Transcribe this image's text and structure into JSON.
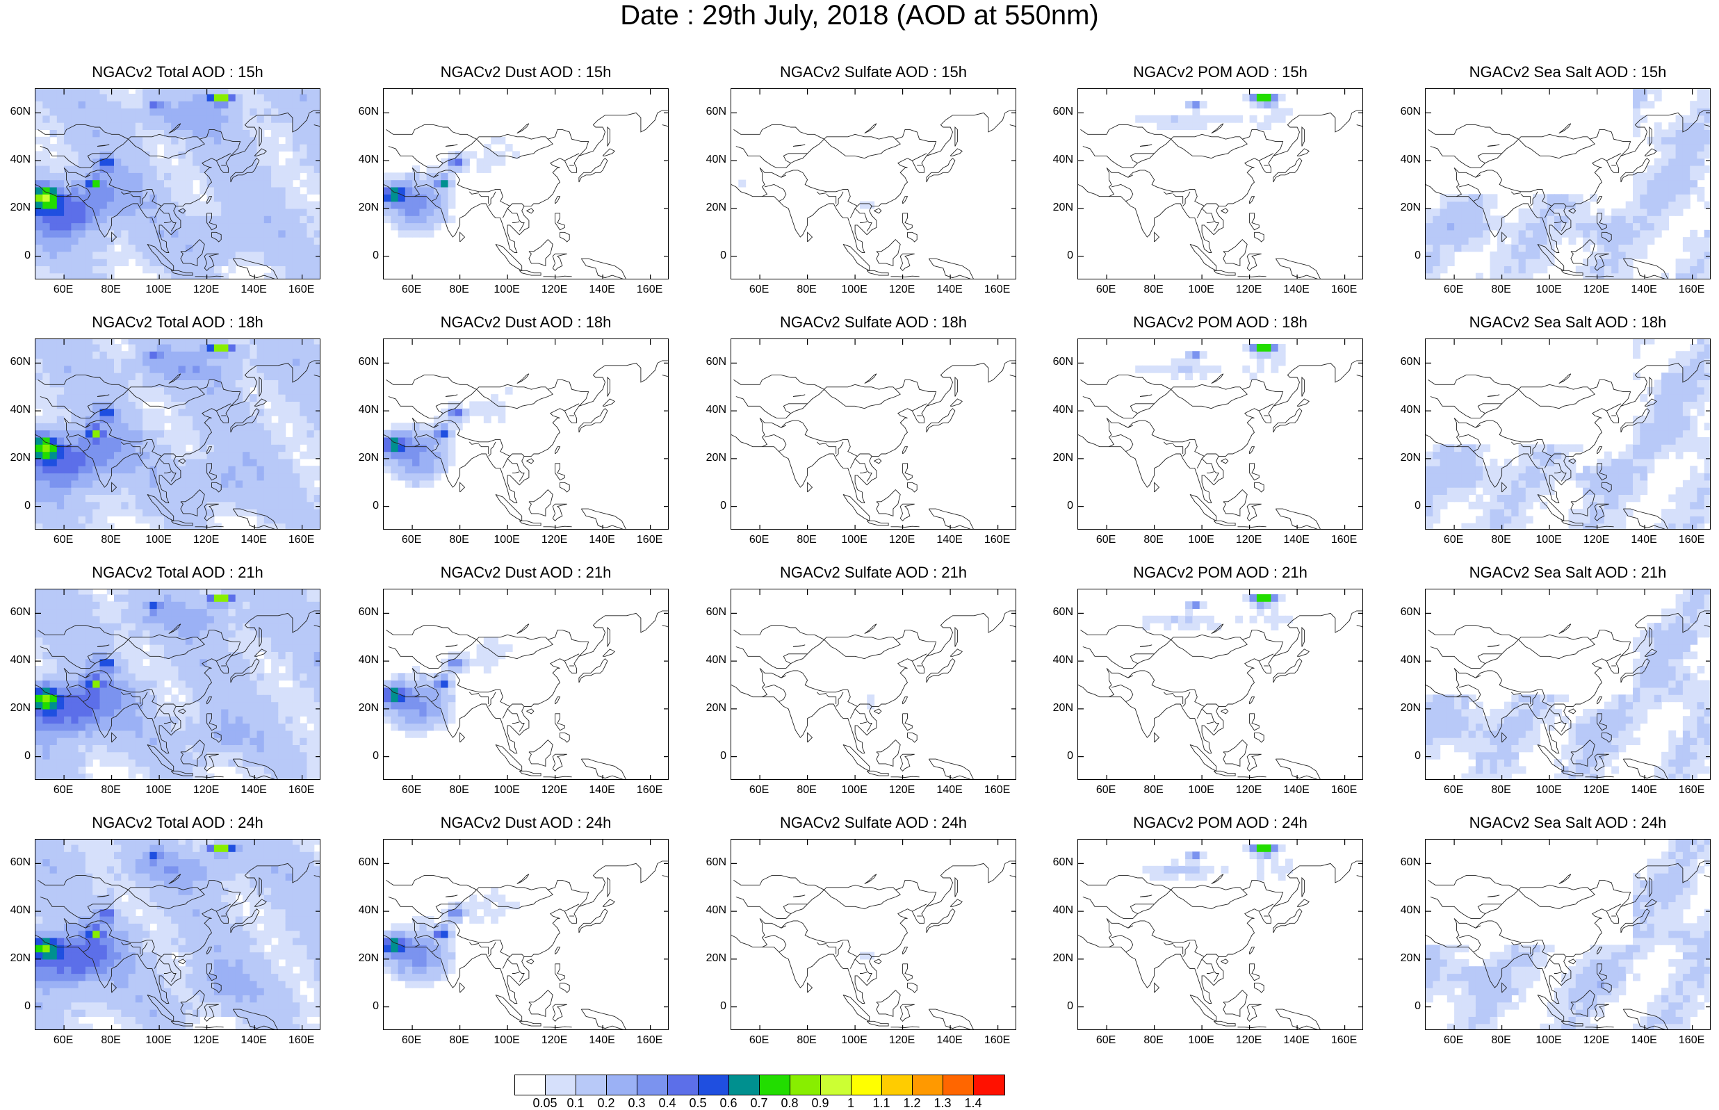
{
  "title": "Date : 29th July, 2018 (AOD at 550nm)",
  "panel_titles": [
    [
      "NGACv2 Total AOD : 15h",
      "NGACv2 Dust AOD : 15h",
      "NGACv2 Sulfate AOD : 15h",
      "NGACv2 POM AOD : 15h",
      "NGACv2 Sea Salt AOD : 15h"
    ],
    [
      "NGACv2 Total AOD : 18h",
      "NGACv2 Dust AOD : 18h",
      "NGACv2 Sulfate AOD : 18h",
      "NGACv2 POM AOD : 18h",
      "NGACv2 Sea Salt AOD : 18h"
    ],
    [
      "NGACv2 Total AOD : 21h",
      "NGACv2 Dust AOD : 21h",
      "NGACv2 Sulfate AOD : 21h",
      "NGACv2 POM AOD : 21h",
      "NGACv2 Sea Salt AOD : 21h"
    ],
    [
      "NGACv2 Total AOD : 24h",
      "NGACv2 Dust AOD : 24h",
      "NGACv2 Sulfate AOD : 24h",
      "NGACv2 POM AOD : 24h",
      "NGACv2 Sea Salt  AOD : 24h"
    ]
  ],
  "map_extent": {
    "lon": [
      48,
      168
    ],
    "lat": [
      -10,
      70
    ]
  },
  "lat_ticks": [
    {
      "value": 60,
      "label": "60N"
    },
    {
      "value": 40,
      "label": "40N"
    },
    {
      "value": 20,
      "label": "20N"
    },
    {
      "value": 0,
      "label": "0"
    }
  ],
  "lon_ticks": [
    {
      "value": 60,
      "label": "60E"
    },
    {
      "value": 80,
      "label": "80E"
    },
    {
      "value": 100,
      "label": "100E"
    },
    {
      "value": 120,
      "label": "120E"
    },
    {
      "value": 140,
      "label": "140E"
    },
    {
      "value": 160,
      "label": "160E"
    }
  ],
  "colorbar": {
    "colors": [
      "#ffffff",
      "#d6e0fb",
      "#b8c9f8",
      "#9bb1f5",
      "#7b93ef",
      "#5c6fe9",
      "#1f4fe0",
      "#00908f",
      "#22dd00",
      "#88ee00",
      "#ccff33",
      "#ffff00",
      "#ffcc00",
      "#ff9900",
      "#ff6600",
      "#ff1100"
    ],
    "labels": [
      "0.05",
      "0.1",
      "0.2",
      "0.3",
      "0.4",
      "0.5",
      "0.6",
      "0.7",
      "0.8",
      "0.9",
      "1",
      "1.1",
      "1.2",
      "1.3",
      "1.4"
    ]
  }
}
